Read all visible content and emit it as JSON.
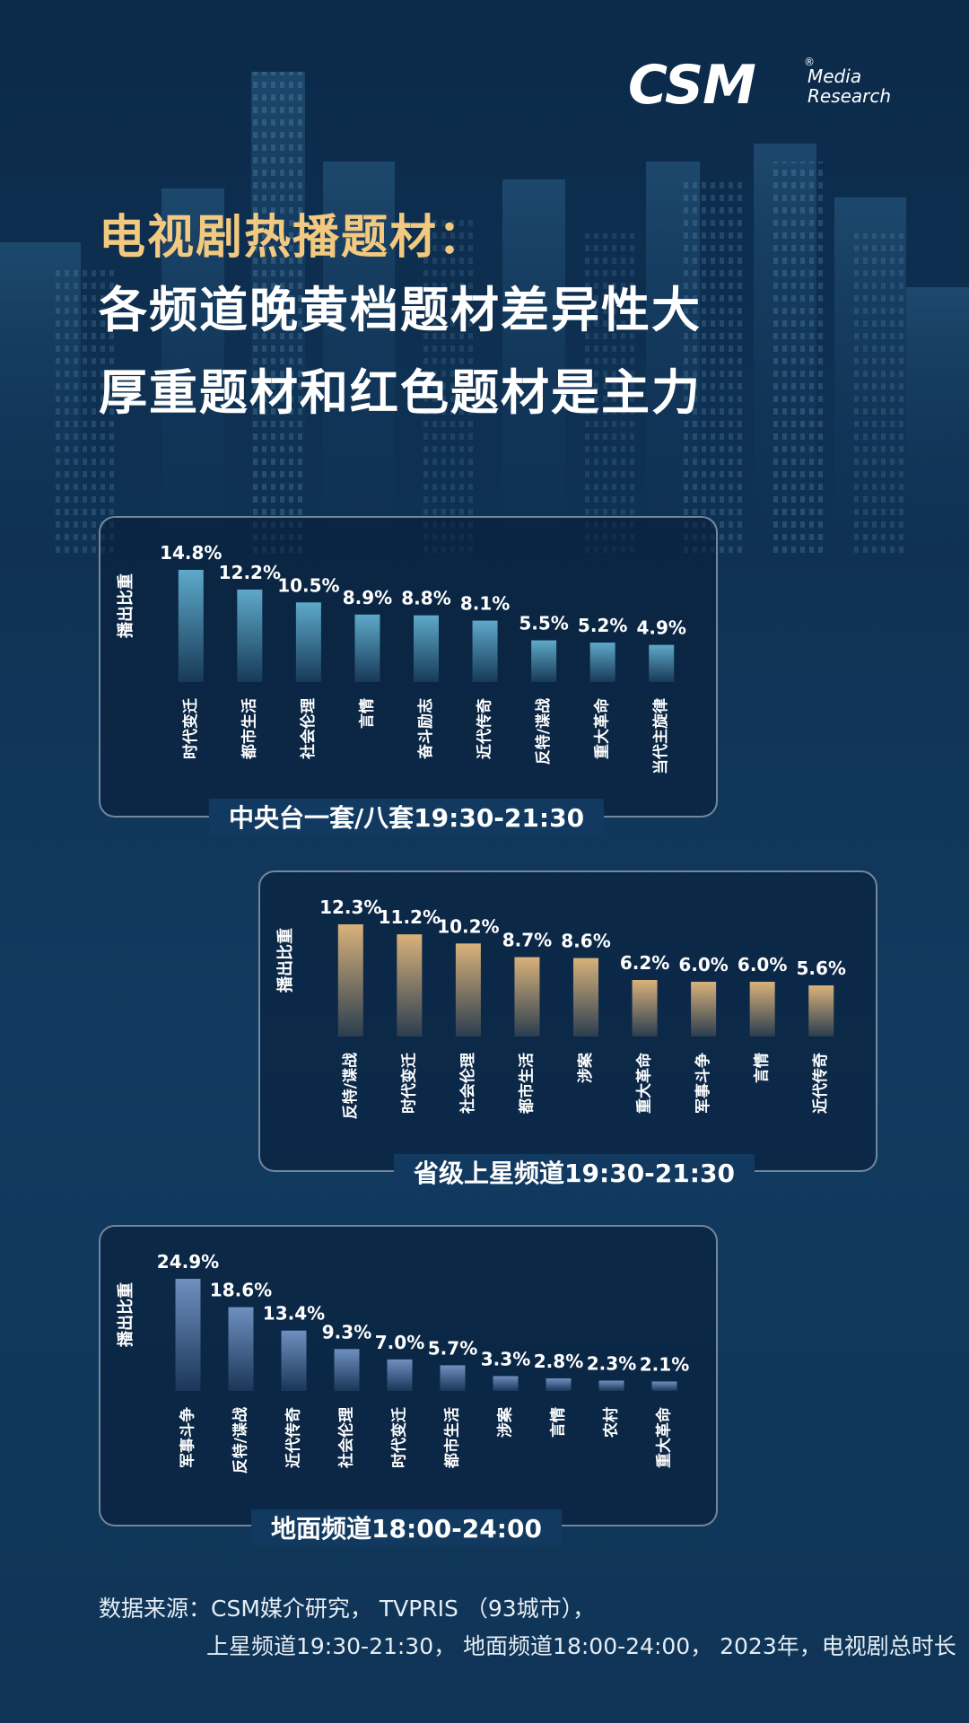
{
  "logo": {
    "main": "CSM",
    "registered": "®",
    "sub1": "Media",
    "sub2": "Research"
  },
  "title": {
    "line1": "电视剧热播题材：",
    "line2": "各频道晚黄档题材差异性大",
    "line3": "厚重题材和红色题材是主力"
  },
  "colors": {
    "accent_gold": "#f2c97f",
    "bar_blue": "#5ea9c9",
    "bar_gold": "#d9b27a",
    "bar_steel": "#6f8fbf"
  },
  "source": {
    "line1": "数据来源：CSM媒介研究， TVPRIS （93城市），",
    "line2": "上星频道19:30-21:30， 地面频道18:00-24:00， 2023年，电视剧总时长"
  },
  "chart_data": [
    {
      "type": "bar",
      "title": "中央台一套/八套19:30-21:30",
      "ylabel": "播出比重",
      "categories": [
        "时代变迁",
        "都市生活",
        "社会伦理",
        "言情",
        "奋斗励志",
        "近代传奇",
        "反特/谍战",
        "重大革命",
        "当代主旋律"
      ],
      "values": [
        14.8,
        12.2,
        10.5,
        8.9,
        8.8,
        8.1,
        5.5,
        5.2,
        4.9
      ],
      "value_labels": [
        "14.8%",
        "12.2%",
        "10.5%",
        "8.9%",
        "8.8%",
        "8.1%",
        "5.5%",
        "5.2%",
        "4.9%"
      ],
      "ylim": [
        0,
        14.8
      ],
      "color": "#5ea9c9",
      "grid": false
    },
    {
      "type": "bar",
      "title": "省级上星频道19:30-21:30",
      "ylabel": "播出比重",
      "categories": [
        "反特/谍战",
        "时代变迁",
        "社会伦理",
        "都市生活",
        "涉案",
        "重大革命",
        "军事斗争",
        "言情",
        "近代传奇"
      ],
      "values": [
        12.3,
        11.2,
        10.2,
        8.7,
        8.6,
        6.2,
        6.0,
        6.0,
        5.6
      ],
      "value_labels": [
        "12.3%",
        "11.2%",
        "10.2%",
        "8.7%",
        "8.6%",
        "6.2%",
        "6.0%",
        "6.0%",
        "5.6%"
      ],
      "ylim": [
        0,
        12.3
      ],
      "color": "#d9b27a",
      "grid": false
    },
    {
      "type": "bar",
      "title": "地面频道18:00-24:00",
      "ylabel": "播出比重",
      "categories": [
        "军事斗争",
        "反特/谍战",
        "近代传奇",
        "社会伦理",
        "时代变迁",
        "都市生活",
        "涉案",
        "言情",
        "农村",
        "重大革命"
      ],
      "values": [
        24.9,
        18.6,
        13.4,
        9.3,
        7.0,
        5.7,
        3.3,
        2.8,
        2.3,
        2.1
      ],
      "value_labels": [
        "24.9%",
        "18.6%",
        "13.4%",
        "9.3%",
        "7.0%",
        "5.7%",
        "3.3%",
        "2.8%",
        "2.3%",
        "2.1%"
      ],
      "ylim": [
        0,
        24.9
      ],
      "color": "#6f8fbf",
      "grid": false
    }
  ]
}
